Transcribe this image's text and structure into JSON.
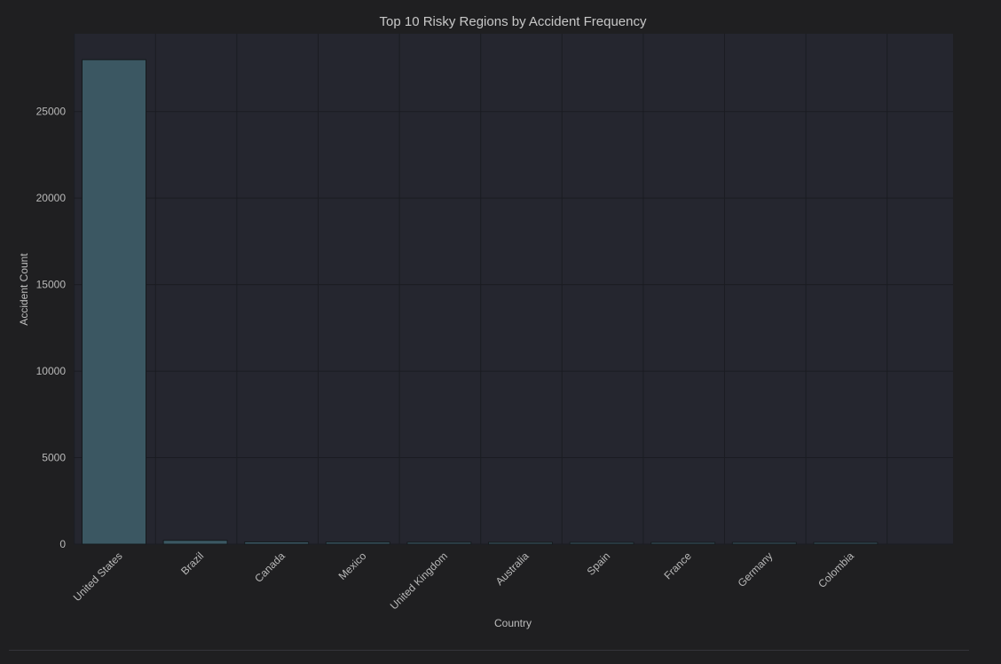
{
  "chart_data": {
    "type": "bar",
    "title": "Top 10 Risky Regions by Accident Frequency",
    "xlabel": "Country",
    "ylabel": "Accident Count",
    "categories": [
      "United States",
      "Brazil",
      "Canada",
      "Mexico",
      "United Kingdom",
      "Australia",
      "Spain",
      "France",
      "Germany",
      "Colombia"
    ],
    "values": [
      28000,
      220,
      130,
      120,
      110,
      105,
      80,
      78,
      76,
      75
    ],
    "ylim": [
      0,
      29500
    ],
    "yticks": [
      0,
      5000,
      10000,
      15000,
      20000,
      25000
    ],
    "grid": true,
    "legend": "none",
    "colors": {
      "background": "#1f1f21",
      "plot_background": "#25262f",
      "grid": "#1b1c22",
      "bar": "#3b5762",
      "bar_edge": "#151a1d",
      "text": "#bdbdbd"
    }
  }
}
